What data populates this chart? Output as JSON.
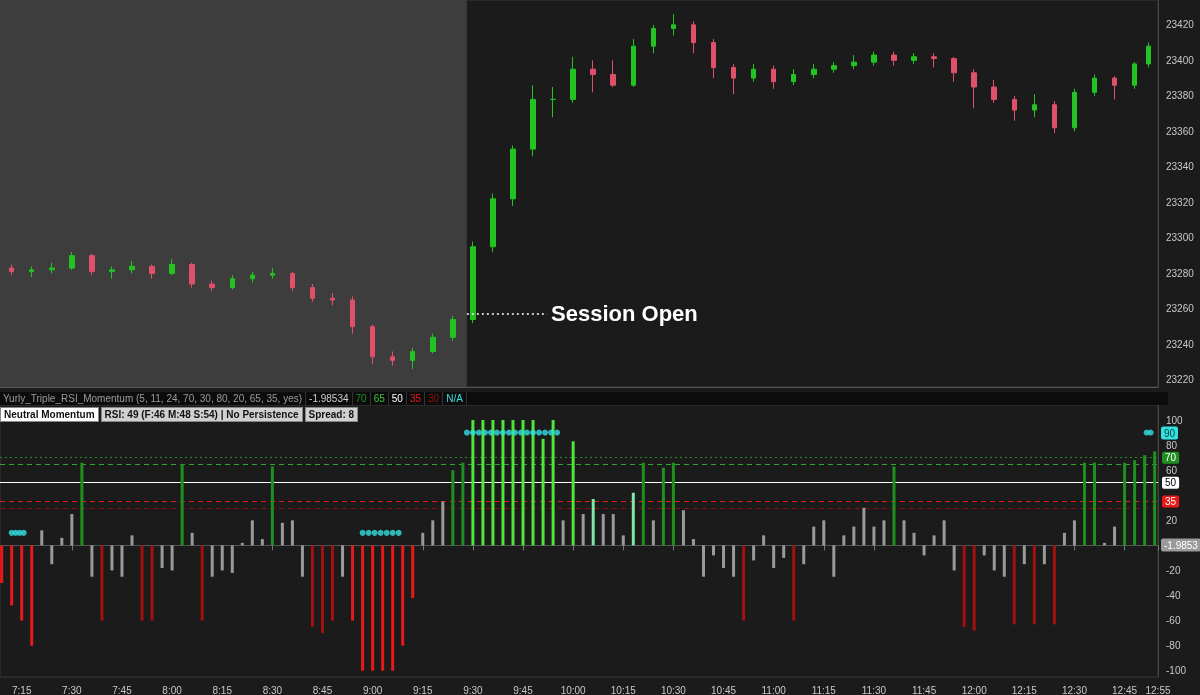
{
  "chart_data": [
    {
      "type": "candlestick",
      "tick_labels": "y",
      "xlim": [
        7.1417,
        12.9167
      ],
      "ylim": [
        23216,
        23434
      ],
      "yticks": [
        23220,
        23240,
        23260,
        23280,
        23300,
        23320,
        23340,
        23360,
        23380,
        23400,
        23420
      ],
      "x": [
        7.2,
        7.3,
        7.4,
        7.5,
        7.6,
        7.7,
        7.8,
        7.9,
        8.0,
        8.1,
        8.2,
        8.3,
        8.4,
        8.5,
        8.6,
        8.7,
        8.8,
        8.9,
        9.0,
        9.1,
        9.2,
        9.3,
        9.4,
        9.5,
        9.6,
        9.7,
        9.8,
        9.9,
        10.0,
        10.1,
        10.2,
        10.3,
        10.4,
        10.5,
        10.6,
        10.7,
        10.8,
        10.9,
        11.0,
        11.1,
        11.2,
        11.3,
        11.4,
        11.5,
        11.6,
        11.7,
        11.8,
        11.9,
        12.0,
        12.1,
        12.2,
        12.3,
        12.4,
        12.5,
        12.6,
        12.7,
        12.8,
        12.87
      ],
      "ohlc": [
        [
          23283,
          23285,
          23279,
          23281
        ],
        [
          23281,
          23284,
          23278,
          23282
        ],
        [
          23282,
          23286,
          23280,
          23283
        ],
        [
          23283,
          23292,
          23282,
          23290
        ],
        [
          23290,
          23291,
          23279,
          23281
        ],
        [
          23281,
          23284,
          23277,
          23282
        ],
        [
          23282,
          23287,
          23280,
          23284
        ],
        [
          23284,
          23285,
          23277,
          23280
        ],
        [
          23280,
          23288,
          23279,
          23285
        ],
        [
          23285,
          23286,
          23272,
          23274
        ],
        [
          23274,
          23276,
          23270,
          23272
        ],
        [
          23272,
          23279,
          23271,
          23277
        ],
        [
          23277,
          23281,
          23275,
          23279
        ],
        [
          23279,
          23283,
          23277,
          23280
        ],
        [
          23280,
          23281,
          23270,
          23272
        ],
        [
          23272,
          23274,
          23264,
          23266
        ],
        [
          23266,
          23269,
          23262,
          23265
        ],
        [
          23265,
          23267,
          23246,
          23250
        ],
        [
          23250,
          23251,
          23229,
          23233
        ],
        [
          23233,
          23236,
          23228,
          23231
        ],
        [
          23231,
          23238,
          23226,
          23236
        ],
        [
          23236,
          23246,
          23235,
          23244
        ],
        [
          23244,
          23256,
          23242,
          23254
        ],
        [
          23254,
          23298,
          23252,
          23295
        ],
        [
          23295,
          23325,
          23292,
          23322
        ],
        [
          23322,
          23352,
          23318,
          23350
        ],
        [
          23350,
          23386,
          23346,
          23378
        ],
        [
          23378,
          23385,
          23368,
          23378
        ],
        [
          23378,
          23402,
          23376,
          23395
        ],
        [
          23395,
          23400,
          23382,
          23392
        ],
        [
          23392,
          23400,
          23385,
          23386
        ],
        [
          23386,
          23412,
          23385,
          23408
        ],
        [
          23408,
          23420,
          23404,
          23418
        ],
        [
          23418,
          23426,
          23414,
          23420
        ],
        [
          23420,
          23422,
          23404,
          23410
        ],
        [
          23410,
          23412,
          23390,
          23396
        ],
        [
          23396,
          23398,
          23381,
          23390
        ],
        [
          23390,
          23398,
          23388,
          23395
        ],
        [
          23395,
          23397,
          23384,
          23388
        ],
        [
          23388,
          23395,
          23386,
          23392
        ],
        [
          23392,
          23398,
          23390,
          23395
        ],
        [
          23395,
          23399,
          23393,
          23397
        ],
        [
          23397,
          23403,
          23395,
          23399
        ],
        [
          23399,
          23405,
          23397,
          23403
        ],
        [
          23403,
          23405,
          23397,
          23400
        ],
        [
          23400,
          23404,
          23398,
          23402
        ],
        [
          23402,
          23404,
          23396,
          23401
        ],
        [
          23401,
          23402,
          23388,
          23393
        ],
        [
          23393,
          23395,
          23373,
          23385
        ],
        [
          23385,
          23389,
          23376,
          23378
        ],
        [
          23378,
          23380,
          23366,
          23372
        ],
        [
          23372,
          23381,
          23368,
          23375
        ],
        [
          23375,
          23377,
          23359,
          23362
        ],
        [
          23362,
          23384,
          23360,
          23382
        ],
        [
          23382,
          23392,
          23380,
          23390
        ],
        [
          23390,
          23391,
          23378,
          23386
        ],
        [
          23386,
          23399,
          23384,
          23398
        ],
        [
          23398,
          23410,
          23396,
          23408
        ]
      ],
      "bands": [
        {
          "axis": "x",
          "from": 7.1417,
          "to": 9.47,
          "color": "#3d3d3d"
        }
      ],
      "annotations": [
        {
          "text": "Session Open",
          "x": 9.47,
          "y": 23257
        }
      ]
    },
    {
      "type": "bar",
      "title": "Yurly_Triple_RSI_Momentum (5, 11, 24, 70, 30, 80, 20, 65, 35, yes)",
      "marker": "circle",
      "xlim": [
        7.1417,
        12.9167
      ],
      "xticks": [
        {
          "value": 7.25,
          "label": "7:15"
        },
        {
          "value": 7.5,
          "label": "7:30"
        },
        {
          "value": 7.75,
          "label": "7:45"
        },
        {
          "value": 8,
          "label": "8:00"
        },
        {
          "value": 8.25,
          "label": "8:15"
        },
        {
          "value": 8.5,
          "label": "8:30"
        },
        {
          "value": 8.75,
          "label": "8:45"
        },
        {
          "value": 9,
          "label": "9:00"
        },
        {
          "value": 9.25,
          "label": "9:15"
        },
        {
          "value": 9.5,
          "label": "9:30"
        },
        {
          "value": 9.75,
          "label": "9:45"
        },
        {
          "value": 10,
          "label": "10:00"
        },
        {
          "value": 10.25,
          "label": "10:15"
        },
        {
          "value": 10.5,
          "label": "10:30"
        },
        {
          "value": 10.75,
          "label": "10:45"
        },
        {
          "value": 11,
          "label": "11:00"
        },
        {
          "value": 11.25,
          "label": "11:15"
        },
        {
          "value": 11.5,
          "label": "11:30"
        },
        {
          "value": 11.75,
          "label": "11:45"
        },
        {
          "value": 12,
          "label": "12:00"
        },
        {
          "value": 12.25,
          "label": "12:15"
        },
        {
          "value": 12.5,
          "label": "12:30"
        },
        {
          "value": 12.75,
          "label": "12:45"
        },
        {
          "value": 12.9167,
          "label": "12:55"
        }
      ],
      "ylim": [
        -105,
        112
      ],
      "yticks": [
        -100,
        -80,
        -60,
        -40,
        -20,
        20,
        60,
        80,
        100
      ],
      "series": [
        {
          "type": "bar",
          "x": [
            7.15,
            7.2,
            7.25,
            7.3,
            7.35,
            7.4,
            7.45,
            7.5,
            7.55,
            7.6,
            7.65,
            7.7,
            7.75,
            7.8,
            7.85,
            7.9,
            7.95,
            8.0,
            8.05,
            8.1,
            8.15,
            8.2,
            8.25,
            8.3,
            8.35,
            8.4,
            8.45,
            8.5,
            8.55,
            8.6,
            8.65,
            8.7,
            8.75,
            8.8,
            8.85,
            8.9,
            8.95,
            9.0,
            9.05,
            9.1,
            9.15,
            9.2,
            9.25,
            9.3,
            9.35,
            9.4,
            9.45,
            9.5,
            9.55,
            9.6,
            9.65,
            9.7,
            9.75,
            9.8,
            9.85,
            9.9,
            9.95,
            10.0,
            10.05,
            10.1,
            10.15,
            10.2,
            10.25,
            10.3,
            10.35,
            10.4,
            10.45,
            10.5,
            10.55,
            10.6,
            10.65,
            10.7,
            10.75,
            10.8,
            10.85,
            10.9,
            10.95,
            11.0,
            11.05,
            11.1,
            11.15,
            11.2,
            11.25,
            11.3,
            11.35,
            11.4,
            11.45,
            11.5,
            11.55,
            11.6,
            11.65,
            11.7,
            11.75,
            11.8,
            11.85,
            11.9,
            11.95,
            12.0,
            12.05,
            12.1,
            12.15,
            12.2,
            12.25,
            12.3,
            12.35,
            12.4,
            12.45,
            12.5,
            12.55,
            12.6,
            12.65,
            12.7,
            12.75,
            12.8,
            12.85,
            12.9
          ],
          "values": [
            -30,
            -48,
            -60,
            -80,
            12,
            -15,
            6,
            25,
            66,
            -25,
            -60,
            -20,
            -25,
            8,
            -60,
            -60,
            -18,
            -20,
            65,
            10,
            -60,
            -25,
            -20,
            -22,
            2,
            20,
            5,
            63,
            18,
            20,
            -25,
            -65,
            -70,
            -60,
            -25,
            -60,
            -100,
            -100,
            -100,
            -100,
            -80,
            -42,
            10,
            20,
            35,
            60,
            66,
            100,
            100,
            100,
            100,
            100,
            100,
            100,
            85,
            100,
            20,
            83,
            25,
            37,
            25,
            25,
            8,
            42,
            66,
            20,
            62,
            66,
            28,
            5,
            -25,
            -8,
            -18,
            -25,
            -60,
            -12,
            8,
            -18,
            -10,
            -60,
            -15,
            15,
            20,
            -25,
            8,
            15,
            30,
            15,
            20,
            63,
            20,
            10,
            -8,
            8,
            20,
            -20,
            -65,
            -68,
            -8,
            -20,
            -25,
            -63,
            -15,
            -63,
            -15,
            -63,
            10,
            20,
            66,
            66,
            2,
            15,
            66,
            68,
            72,
            75
          ],
          "colors": [
            "#e8191a",
            "#e8191a",
            "#e8191a",
            "#e8191a",
            "#9a9a9a",
            "#9a9a9a",
            "#9a9a9a",
            "#9a9a9a",
            "#1f8f1f",
            "#9a9a9a",
            "#a3100f",
            "#9a9a9a",
            "#9a9a9a",
            "#9a9a9a",
            "#a3100f",
            "#a3100f",
            "#9a9a9a",
            "#9a9a9a",
            "#1f8f1f",
            "#9a9a9a",
            "#a3100f",
            "#9a9a9a",
            "#9a9a9a",
            "#9a9a9a",
            "#9a9a9a",
            "#9a9a9a",
            "#9a9a9a",
            "#1f8f1f",
            "#9a9a9a",
            "#9a9a9a",
            "#9a9a9a",
            "#a3100f",
            "#a3100f",
            "#a3100f",
            "#9a9a9a",
            "#e8191a",
            "#e8191a",
            "#e8191a",
            "#e8191a",
            "#e8191a",
            "#e8191a",
            "#e8191a",
            "#9a9a9a",
            "#9a9a9a",
            "#9a9a9a",
            "#1f8f1f",
            "#1f8f1f",
            "#4ee63a",
            "#4ee63a",
            "#4ee63a",
            "#4ee63a",
            "#4ee63a",
            "#4ee63a",
            "#4ee63a",
            "#4ee63a",
            "#4ee63a",
            "#9a9a9a",
            "#4ee63a",
            "#9a9a9a",
            "#7fe8a5",
            "#9a9a9a",
            "#9a9a9a",
            "#9a9a9a",
            "#7fe8a5",
            "#1f8f1f",
            "#9a9a9a",
            "#1f8f1f",
            "#1f8f1f",
            "#9a9a9a",
            "#9a9a9a",
            "#9a9a9a",
            "#9a9a9a",
            "#9a9a9a",
            "#9a9a9a",
            "#a3100f",
            "#9a9a9a",
            "#9a9a9a",
            "#9a9a9a",
            "#9a9a9a",
            "#a3100f",
            "#9a9a9a",
            "#9a9a9a",
            "#9a9a9a",
            "#9a9a9a",
            "#9a9a9a",
            "#9a9a9a",
            "#9a9a9a",
            "#9a9a9a",
            "#9a9a9a",
            "#1f8f1f",
            "#9a9a9a",
            "#9a9a9a",
            "#9a9a9a",
            "#9a9a9a",
            "#9a9a9a",
            "#9a9a9a",
            "#a3100f",
            "#a3100f",
            "#9a9a9a",
            "#9a9a9a",
            "#9a9a9a",
            "#a3100f",
            "#9a9a9a",
            "#a3100f",
            "#9a9a9a",
            "#a3100f",
            "#9a9a9a",
            "#9a9a9a",
            "#1f8f1f",
            "#1f8f1f",
            "#9a9a9a",
            "#9a9a9a",
            "#1f8f1f",
            "#1f8f1f",
            "#1f8f1f",
            "#1f8f1f"
          ]
        },
        {
          "type": "scatter",
          "color": "#33e0e0",
          "x": [
            7.2,
            7.22,
            7.24,
            7.26,
            8.95,
            8.98,
            9.01,
            9.04,
            9.07,
            9.1,
            9.13,
            9.47,
            9.5,
            9.53,
            9.56,
            9.59,
            9.62,
            9.65,
            9.68,
            9.71,
            9.74,
            9.77,
            9.8,
            9.83,
            9.86,
            9.89,
            9.92,
            12.86,
            12.88
          ],
          "values": [
            10,
            10,
            10,
            10,
            10,
            10,
            10,
            10,
            10,
            10,
            10,
            90,
            90,
            90,
            90,
            90,
            90,
            90,
            90,
            90,
            90,
            90,
            90,
            90,
            90,
            90,
            90,
            90,
            90
          ]
        }
      ],
      "ref_lines": [
        {
          "axis": "y",
          "value": 70,
          "label": "70",
          "color": "#1f8f1f",
          "line_style": "dotted"
        },
        {
          "axis": "y",
          "value": 65,
          "label": null,
          "color": "#2fa82f",
          "line_style": "dashed"
        },
        {
          "axis": "y",
          "value": 50,
          "label": "50",
          "color": "#ffffff",
          "line_style": "solid"
        },
        {
          "axis": "y",
          "value": 35,
          "label": "35",
          "color": "#e8191a",
          "line_style": "dashed"
        },
        {
          "axis": "y",
          "value": 30,
          "label": null,
          "color": "#8b1010",
          "line_style": "dashed"
        }
      ],
      "annotations": [
        "-1.98534",
        "70",
        "65",
        "50",
        "35",
        "30",
        "N/A",
        "Neutral Momentum",
        "RSI: 49 (F:46 M:48 S:54) | No Persistence",
        "Spread: 8",
        "90",
        "-1.9853"
      ]
    }
  ]
}
